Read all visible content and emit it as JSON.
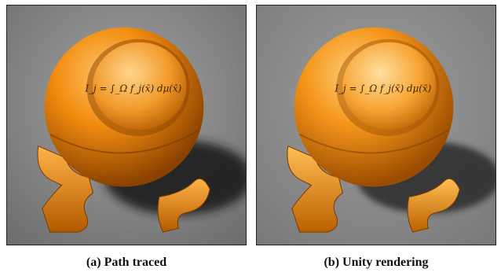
{
  "figure": {
    "panels": [
      {
        "label": "(a)",
        "caption": "Path traced",
        "equation": "I_j = ∫_Ω f_j(x̄) dμ(x̄)",
        "colors": {
          "background": "#8a8a8a",
          "orange_light": "#ffb347",
          "orange_mid": "#f28c0f",
          "orange_dark": "#9a4a00",
          "shadow": "#1e1e1e"
        }
      },
      {
        "label": "(b)",
        "caption": "Unity rendering",
        "equation": "I_j = ∫_Ω f_j(x̄) dμ(x̄)",
        "colors": {
          "background": "#8c8c8c",
          "orange_light": "#ffbf55",
          "orange_mid": "#f5951a",
          "orange_dark": "#a35200",
          "shadow": "#2a2a2a"
        }
      }
    ]
  }
}
